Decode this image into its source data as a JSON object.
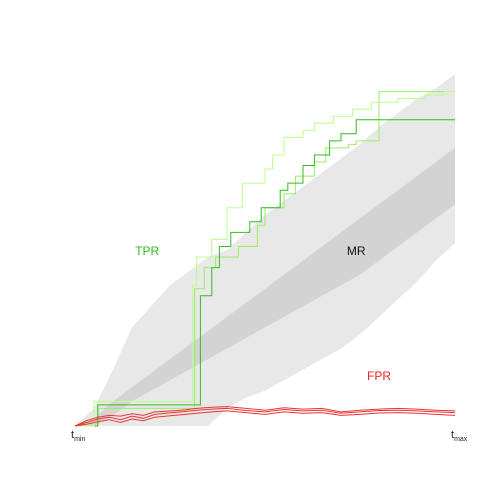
{
  "chart_data": {
    "type": "line",
    "title": "",
    "xlabel": "",
    "ylabel": "",
    "grid": false,
    "xlim": [
      0,
      1
    ],
    "ylim": [
      0,
      1
    ],
    "x_ticks": [
      {
        "main": "t",
        "sub": "min",
        "x": 0
      },
      {
        "main": "t",
        "sub": "max",
        "x": 1
      }
    ],
    "annotations": [
      {
        "text": "TPR",
        "x": 0.19,
        "y": 0.495,
        "color": "#33bb22"
      },
      {
        "text": "MR",
        "x": 0.74,
        "y": 0.495,
        "color": "#111111"
      },
      {
        "text": "FPR",
        "x": 0.8,
        "y": 0.14,
        "color": "#ee2222"
      }
    ],
    "bands": [
      {
        "name_hint": "MR outer",
        "color": "#e8e8e8",
        "x": [
          0.0,
          0.05,
          0.1,
          0.15,
          0.2,
          0.25,
          0.3,
          0.35,
          0.4,
          0.45,
          0.5,
          0.55,
          0.6,
          0.65,
          0.7,
          0.75,
          0.8,
          0.85,
          0.9,
          0.95,
          1.0
        ],
        "lower": [
          0.0,
          0.0,
          0.0,
          0.0,
          0.0,
          0.0,
          0.0,
          0.0,
          0.05,
          0.08,
          0.1,
          0.13,
          0.16,
          0.19,
          0.22,
          0.26,
          0.31,
          0.36,
          0.41,
          0.47,
          0.52
        ],
        "upper": [
          0.0,
          0.05,
          0.16,
          0.28,
          0.34,
          0.4,
          0.44,
          0.48,
          0.5,
          0.55,
          0.6,
          0.64,
          0.68,
          0.72,
          0.76,
          0.8,
          0.85,
          0.89,
          0.93,
          0.96,
          1.0
        ]
      },
      {
        "name_hint": "MR inner",
        "color": "#d3d3d3",
        "x": [
          0.0,
          0.05,
          0.1,
          0.15,
          0.2,
          0.25,
          0.3,
          0.35,
          0.4,
          0.45,
          0.5,
          0.55,
          0.6,
          0.65,
          0.7,
          0.75,
          0.8,
          0.85,
          0.9,
          0.95,
          1.0
        ],
        "lower": [
          0.0,
          0.0,
          0.03,
          0.07,
          0.1,
          0.13,
          0.16,
          0.19,
          0.22,
          0.25,
          0.28,
          0.31,
          0.34,
          0.37,
          0.4,
          0.43,
          0.47,
          0.51,
          0.55,
          0.59,
          0.63
        ],
        "upper": [
          0.0,
          0.02,
          0.07,
          0.11,
          0.15,
          0.19,
          0.23,
          0.27,
          0.31,
          0.35,
          0.39,
          0.43,
          0.47,
          0.51,
          0.55,
          0.59,
          0.63,
          0.67,
          0.71,
          0.75,
          0.79
        ]
      }
    ],
    "series": [
      {
        "color": "#99ee66",
        "width": 1,
        "step": true,
        "x": [
          0.0,
          0.06,
          0.3,
          0.315,
          0.34,
          0.37,
          0.43,
          0.48,
          0.5,
          0.55,
          0.58,
          0.63,
          0.66,
          0.72,
          0.74,
          0.8,
          1.0
        ],
        "y": [
          0.0,
          0.05,
          0.05,
          0.39,
          0.45,
          0.48,
          0.51,
          0.57,
          0.62,
          0.66,
          0.71,
          0.75,
          0.79,
          0.8,
          0.81,
          0.95,
          0.95
        ]
      },
      {
        "color": "#33bb22",
        "width": 1,
        "step": true,
        "x": [
          0.0,
          0.06,
          0.325,
          0.33,
          0.36,
          0.38,
          0.41,
          0.46,
          0.49,
          0.54,
          0.56,
          0.6,
          0.63,
          0.67,
          0.7,
          0.74,
          0.77,
          1.0
        ],
        "y": [
          0.0,
          0.06,
          0.06,
          0.37,
          0.45,
          0.51,
          0.55,
          0.58,
          0.62,
          0.67,
          0.69,
          0.74,
          0.77,
          0.81,
          0.83,
          0.87,
          0.87,
          0.87
        ]
      },
      {
        "color": "#bbff88",
        "width": 1,
        "step": true,
        "x": [
          0.0,
          0.05,
          0.28,
          0.31,
          0.32,
          0.36,
          0.4,
          0.44,
          0.5,
          0.52,
          0.55,
          0.6,
          0.63,
          0.68,
          0.73,
          0.78,
          0.85,
          0.92,
          0.97,
          1.0
        ],
        "y": [
          0.0,
          0.07,
          0.07,
          0.4,
          0.48,
          0.53,
          0.62,
          0.69,
          0.73,
          0.77,
          0.82,
          0.84,
          0.86,
          0.88,
          0.9,
          0.92,
          0.93,
          0.94,
          0.95,
          0.95
        ]
      },
      {
        "color": "#ee3333",
        "width": 1,
        "step": false,
        "x": [
          0.0,
          0.03,
          0.06,
          0.09,
          0.12,
          0.15,
          0.18,
          0.21,
          0.24,
          0.28,
          0.32,
          0.36,
          0.4,
          0.45,
          0.5,
          0.55,
          0.6,
          0.65,
          0.7,
          0.75,
          0.8,
          0.85,
          0.9,
          0.95,
          1.0
        ],
        "y": [
          0.0,
          0.015,
          0.025,
          0.03,
          0.028,
          0.035,
          0.03,
          0.04,
          0.042,
          0.045,
          0.05,
          0.053,
          0.055,
          0.05,
          0.045,
          0.052,
          0.048,
          0.05,
          0.04,
          0.045,
          0.048,
          0.05,
          0.048,
          0.045,
          0.043
        ]
      },
      {
        "color": "#ee3333",
        "width": 1,
        "step": false,
        "x": [
          0.0,
          0.03,
          0.06,
          0.09,
          0.12,
          0.15,
          0.18,
          0.21,
          0.24,
          0.28,
          0.32,
          0.36,
          0.4,
          0.45,
          0.5,
          0.55,
          0.6,
          0.65,
          0.7,
          0.75,
          0.8,
          0.85,
          0.9,
          0.95,
          1.0
        ],
        "y": [
          0.0,
          0.01,
          0.02,
          0.025,
          0.018,
          0.028,
          0.022,
          0.033,
          0.036,
          0.04,
          0.045,
          0.048,
          0.05,
          0.044,
          0.04,
          0.047,
          0.043,
          0.045,
          0.036,
          0.04,
          0.044,
          0.045,
          0.043,
          0.04,
          0.038
        ]
      },
      {
        "color": "#ee3333",
        "width": 1,
        "step": false,
        "x": [
          0.0,
          0.03,
          0.06,
          0.09,
          0.12,
          0.15,
          0.18,
          0.21,
          0.24,
          0.28,
          0.32,
          0.36,
          0.4,
          0.45,
          0.5,
          0.55,
          0.6,
          0.65,
          0.7,
          0.75,
          0.8,
          0.85,
          0.9,
          0.95,
          1.0
        ],
        "y": [
          0.0,
          0.005,
          0.012,
          0.018,
          0.01,
          0.02,
          0.015,
          0.025,
          0.028,
          0.032,
          0.036,
          0.04,
          0.043,
          0.038,
          0.033,
          0.04,
          0.036,
          0.038,
          0.03,
          0.033,
          0.037,
          0.038,
          0.036,
          0.033,
          0.03
        ]
      }
    ]
  }
}
